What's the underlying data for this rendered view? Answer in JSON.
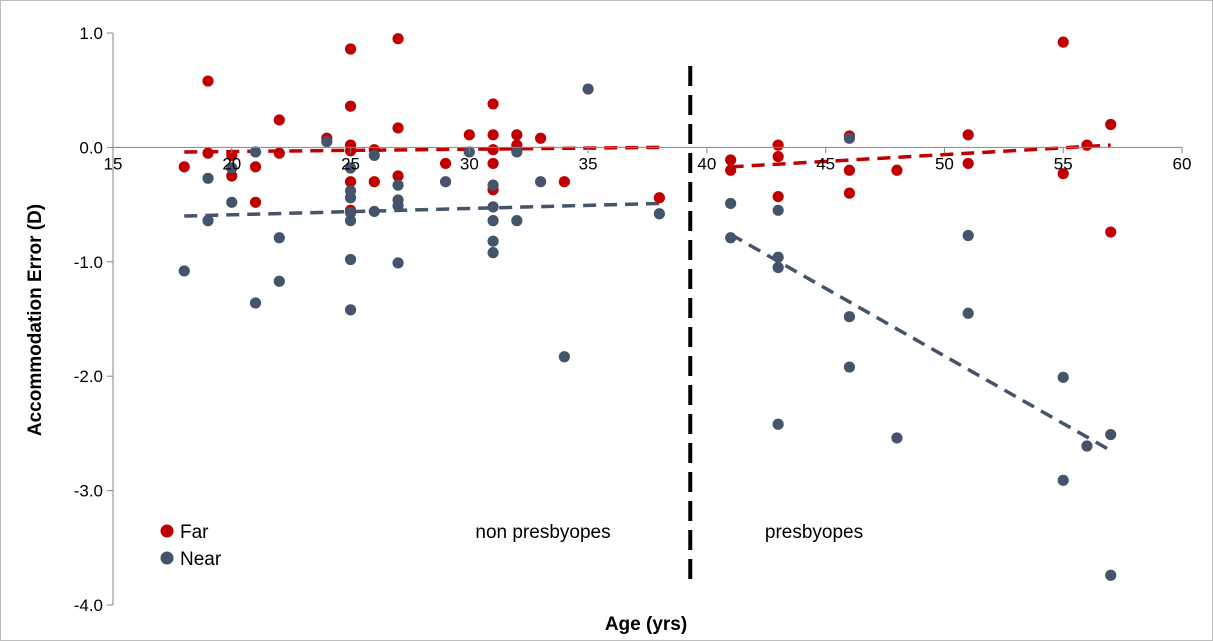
{
  "chart_data": {
    "type": "scatter",
    "title": "",
    "xlabel": "Age (yrs)",
    "ylabel": "Accommodation Error (D)",
    "xlim": [
      15,
      60
    ],
    "ylim": [
      -4.0,
      1.0
    ],
    "xticks": [
      15,
      20,
      25,
      30,
      35,
      40,
      45,
      50,
      55,
      60
    ],
    "yticks": [
      -4.0,
      -3.0,
      -2.0,
      -1.0,
      0.0,
      1.0
    ],
    "ytick_labels": [
      "-4.0",
      "-3.0",
      "-2.0",
      "-1.0",
      "0.0",
      "1.0"
    ],
    "grid": false,
    "legend_position": "bottom-left",
    "divider_x": 39.3,
    "annotations": [
      "non presbyopes",
      "presbyopes"
    ],
    "series": [
      {
        "name": "Far",
        "color": "#c00000",
        "points": [
          [
            18,
            -0.17
          ],
          [
            19,
            0.58
          ],
          [
            19,
            -0.05
          ],
          [
            20,
            -0.07
          ],
          [
            20,
            -0.25
          ],
          [
            21,
            -0.17
          ],
          [
            21,
            -0.48
          ],
          [
            22,
            0.24
          ],
          [
            22,
            -0.05
          ],
          [
            24,
            0.08
          ],
          [
            25,
            0.86
          ],
          [
            25,
            0.36
          ],
          [
            25,
            0.02
          ],
          [
            25,
            -0.03
          ],
          [
            25,
            -0.3
          ],
          [
            25,
            -0.55
          ],
          [
            26,
            -0.02
          ],
          [
            26,
            -0.3
          ],
          [
            27,
            0.95
          ],
          [
            27,
            0.17
          ],
          [
            27,
            -0.25
          ],
          [
            29,
            -0.14
          ],
          [
            30,
            0.11
          ],
          [
            31,
            0.38
          ],
          [
            31,
            0.11
          ],
          [
            31,
            -0.02
          ],
          [
            31,
            -0.14
          ],
          [
            31,
            -0.37
          ],
          [
            32,
            0.11
          ],
          [
            32,
            0.02
          ],
          [
            33,
            0.08
          ],
          [
            34,
            -0.3
          ],
          [
            38,
            -0.44
          ],
          [
            41,
            -0.11
          ],
          [
            41,
            -0.2
          ],
          [
            43,
            0.02
          ],
          [
            43,
            -0.08
          ],
          [
            43,
            -0.43
          ],
          [
            46,
            0.1
          ],
          [
            46,
            -0.2
          ],
          [
            46,
            -0.4
          ],
          [
            48,
            -0.2
          ],
          [
            51,
            0.11
          ],
          [
            51,
            -0.14
          ],
          [
            55,
            0.92
          ],
          [
            55,
            -0.23
          ],
          [
            56,
            0.02
          ],
          [
            57,
            0.2
          ],
          [
            57,
            -0.74
          ]
        ],
        "trend": [
          [
            18,
            -0.04
          ],
          [
            38,
            0.0
          ],
          [
            41,
            -0.17
          ],
          [
            57,
            0.02
          ]
        ]
      },
      {
        "name": "Near",
        "color": "#44546a",
        "points": [
          [
            18,
            -1.08
          ],
          [
            19,
            -0.27
          ],
          [
            19,
            -0.64
          ],
          [
            20,
            -0.18
          ],
          [
            20,
            -0.48
          ],
          [
            21,
            -0.04
          ],
          [
            21,
            -1.36
          ],
          [
            22,
            -0.79
          ],
          [
            22,
            -1.17
          ],
          [
            24,
            0.05
          ],
          [
            25,
            -0.18
          ],
          [
            25,
            -0.38
          ],
          [
            25,
            -0.44
          ],
          [
            25,
            -0.57
          ],
          [
            25,
            -0.64
          ],
          [
            25,
            -0.98
          ],
          [
            25,
            -1.42
          ],
          [
            26,
            -0.07
          ],
          [
            26,
            -0.56
          ],
          [
            27,
            -0.33
          ],
          [
            27,
            -0.46
          ],
          [
            27,
            -0.51
          ],
          [
            27,
            -1.01
          ],
          [
            29,
            -0.3
          ],
          [
            30,
            -0.04
          ],
          [
            31,
            -0.33
          ],
          [
            31,
            -0.52
          ],
          [
            31,
            -0.64
          ],
          [
            31,
            -0.82
          ],
          [
            31,
            -0.92
          ],
          [
            32,
            -0.04
          ],
          [
            32,
            -0.64
          ],
          [
            33,
            -0.3
          ],
          [
            34,
            -1.83
          ],
          [
            35,
            0.51
          ],
          [
            38,
            -0.58
          ],
          [
            41,
            -0.49
          ],
          [
            41,
            -0.79
          ],
          [
            43,
            -0.55
          ],
          [
            43,
            -0.96
          ],
          [
            43,
            -1.05
          ],
          [
            43,
            -2.42
          ],
          [
            46,
            0.08
          ],
          [
            46,
            -1.48
          ],
          [
            46,
            -1.92
          ],
          [
            48,
            -2.54
          ],
          [
            51,
            -0.77
          ],
          [
            51,
            -1.45
          ],
          [
            55,
            -2.01
          ],
          [
            55,
            -2.91
          ],
          [
            56,
            -2.61
          ],
          [
            57,
            -2.51
          ],
          [
            57,
            -3.74
          ]
        ],
        "trend": [
          [
            18,
            -0.6
          ],
          [
            38,
            -0.49
          ],
          [
            41,
            -0.76
          ],
          [
            57,
            -2.65
          ]
        ]
      }
    ]
  }
}
